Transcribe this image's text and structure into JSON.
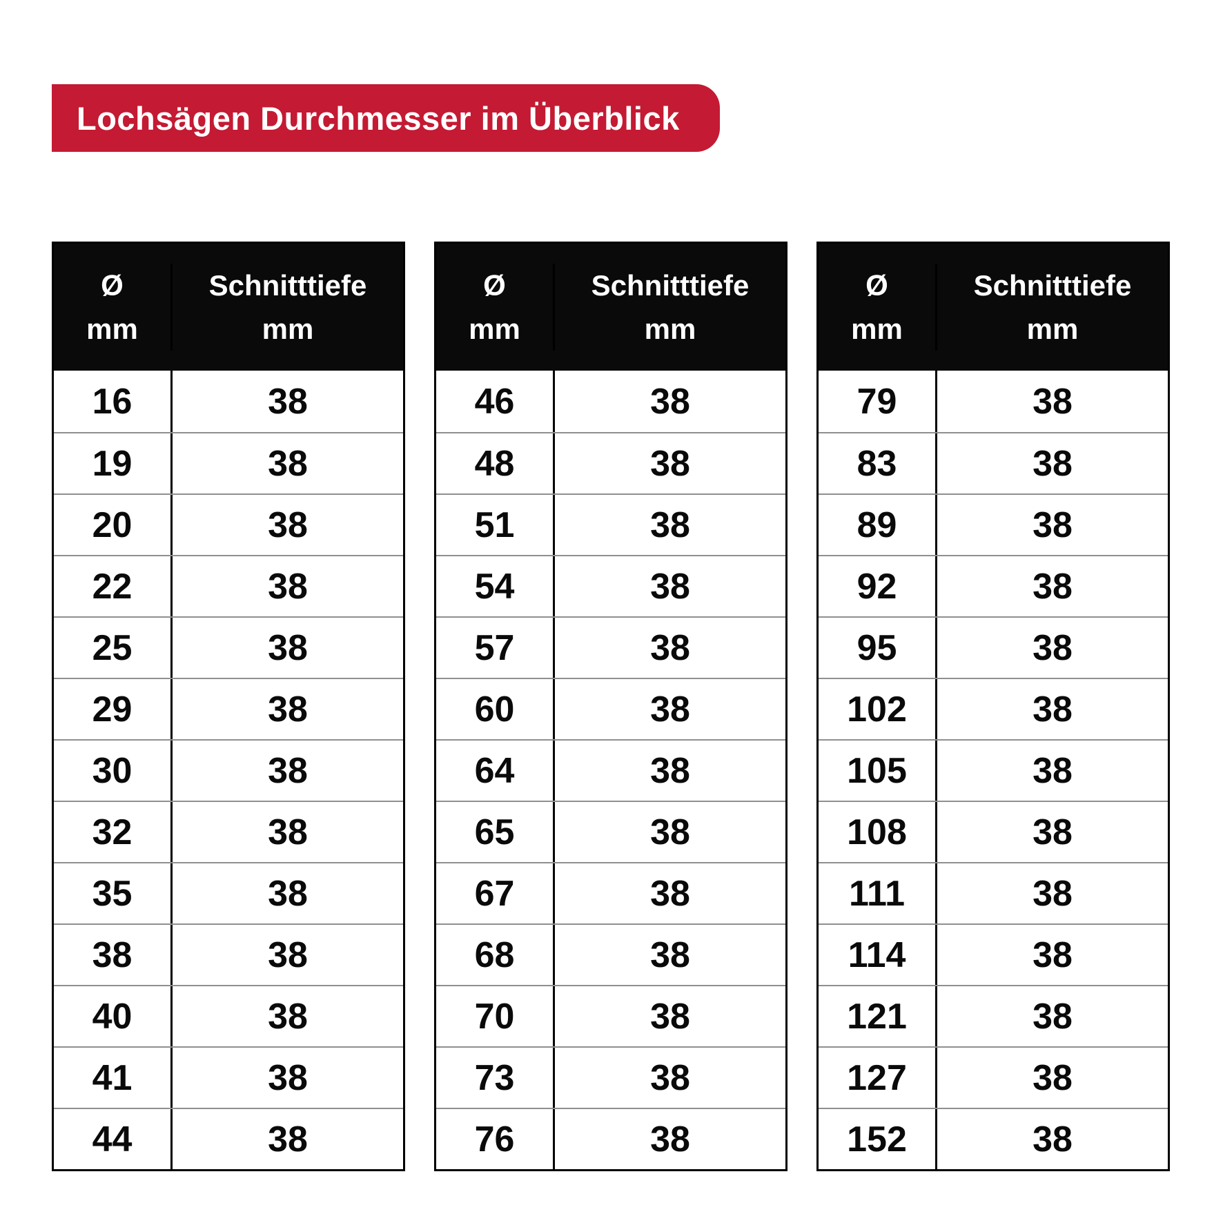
{
  "title": {
    "label": "Lochsägen Durchmesser im Überblick"
  },
  "colors": {
    "banner_red": "#C41A33",
    "banner_text": "#FFFFFF",
    "header_black": "#0A0A0A",
    "row_divider_gray": "#8F8F8F"
  },
  "table_header": {
    "diameter_symbol": "Ø",
    "diameter_unit": "mm",
    "depth_label": "Schnitttiefe",
    "depth_unit": "mm"
  },
  "chart_data": {
    "type": "table",
    "title": "Lochsägen Durchmesser im Überblick",
    "columns": [
      "Ø mm",
      "Schnitttiefe mm"
    ],
    "tables": [
      {
        "rows": [
          [
            16,
            38
          ],
          [
            19,
            38
          ],
          [
            20,
            38
          ],
          [
            22,
            38
          ],
          [
            25,
            38
          ],
          [
            29,
            38
          ],
          [
            30,
            38
          ],
          [
            32,
            38
          ],
          [
            35,
            38
          ],
          [
            38,
            38
          ],
          [
            40,
            38
          ],
          [
            41,
            38
          ],
          [
            44,
            38
          ]
        ]
      },
      {
        "rows": [
          [
            46,
            38
          ],
          [
            48,
            38
          ],
          [
            51,
            38
          ],
          [
            54,
            38
          ],
          [
            57,
            38
          ],
          [
            60,
            38
          ],
          [
            64,
            38
          ],
          [
            65,
            38
          ],
          [
            67,
            38
          ],
          [
            68,
            38
          ],
          [
            70,
            38
          ],
          [
            73,
            38
          ],
          [
            76,
            38
          ]
        ]
      },
      {
        "rows": [
          [
            79,
            38
          ],
          [
            83,
            38
          ],
          [
            89,
            38
          ],
          [
            92,
            38
          ],
          [
            95,
            38
          ],
          [
            102,
            38
          ],
          [
            105,
            38
          ],
          [
            108,
            38
          ],
          [
            111,
            38
          ],
          [
            114,
            38
          ],
          [
            121,
            38
          ],
          [
            127,
            38
          ],
          [
            152,
            38
          ]
        ]
      }
    ]
  }
}
